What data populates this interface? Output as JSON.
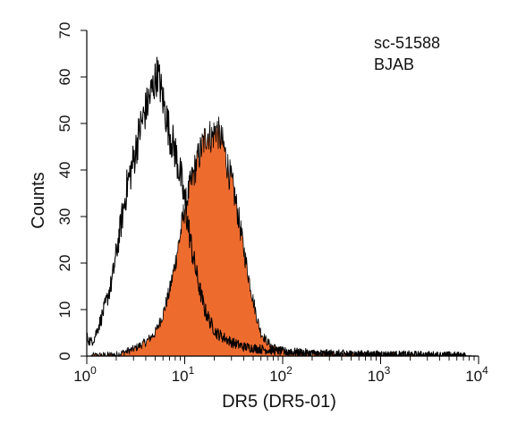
{
  "chart_data": {
    "type": "area",
    "xlabel": "DR5 (DR5-01)",
    "ylabel": "Counts",
    "x_scale": "log10",
    "xlim": [
      1,
      10000
    ],
    "ylim": [
      0,
      70
    ],
    "x_ticks": [
      {
        "value": 1,
        "base": "10",
        "exp": "0"
      },
      {
        "value": 10,
        "base": "10",
        "exp": "1"
      },
      {
        "value": 100,
        "base": "10",
        "exp": "2"
      },
      {
        "value": 1000,
        "base": "10",
        "exp": "3"
      },
      {
        "value": 10000,
        "base": "10",
        "exp": "4"
      }
    ],
    "y_ticks": [
      "0",
      "10",
      "20",
      "30",
      "40",
      "50",
      "60",
      "70"
    ],
    "annotations": [
      "sc-51588",
      "BJAB"
    ],
    "grid": false,
    "series": [
      {
        "style": "outline",
        "color": "#000000",
        "x": [
          1.0,
          1.1,
          1.2,
          1.4,
          1.6,
          1.8,
          2.0,
          2.3,
          2.6,
          3.0,
          3.5,
          4.0,
          4.6,
          5.3,
          6.0,
          7.0,
          8.0,
          9.2,
          10.5,
          12.0,
          14.0,
          16.0,
          18.5,
          21.0,
          25.0,
          30.0,
          40.0,
          60.0,
          100.0,
          200.0,
          500.0,
          1000.0,
          3000.0,
          10000.0
        ],
        "values": [
          4,
          3,
          4,
          8,
          12,
          16,
          22,
          30,
          37,
          42,
          49,
          53,
          57,
          61,
          55,
          48,
          44,
          38,
          30,
          22,
          15,
          10,
          7,
          5,
          4,
          3,
          2,
          1.5,
          1,
          0.6,
          0.4,
          0.3,
          0.2,
          0
        ]
      },
      {
        "style": "filled",
        "color": "#EE6B2E",
        "x": [
          1.0,
          2.0,
          3.0,
          4.0,
          5.0,
          6.0,
          7.0,
          8.0,
          9.0,
          10.0,
          11.5,
          13.0,
          15.0,
          17.0,
          19.0,
          21.0,
          23.0,
          25.0,
          28.0,
          32.0,
          36.0,
          40.0,
          45.0,
          50.0,
          55.0,
          60.0,
          70.0,
          80.0,
          100.0,
          150.0,
          300.0,
          1000.0,
          3000.0,
          10000.0
        ],
        "values": [
          0,
          0.3,
          1.5,
          3,
          5,
          9,
          14,
          20,
          26,
          32,
          37,
          41,
          45,
          48,
          47,
          49,
          47,
          45,
          40,
          35,
          29,
          23,
          17,
          12,
          8,
          5,
          3,
          2,
          1,
          0.6,
          0.4,
          0.3,
          0.2,
          0
        ]
      }
    ]
  }
}
